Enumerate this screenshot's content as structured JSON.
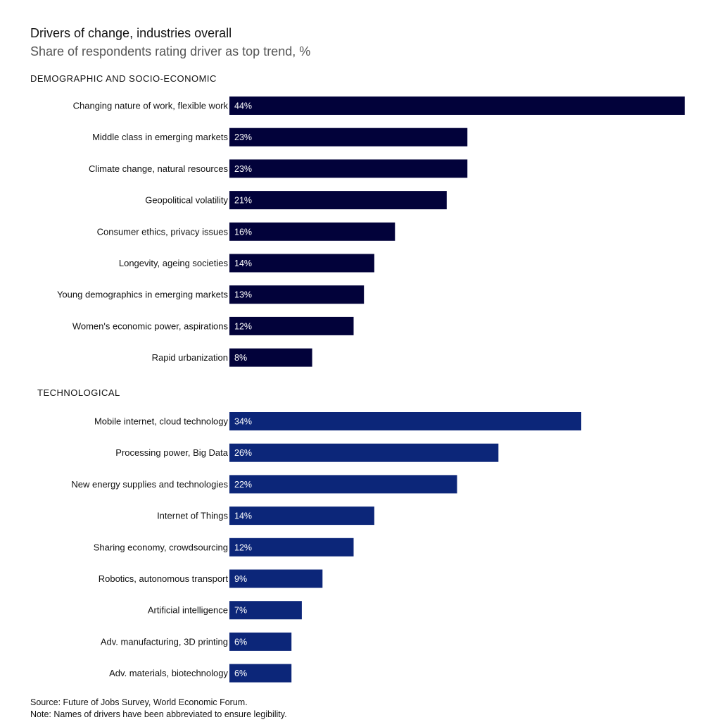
{
  "title": "Drivers of change, industries overall",
  "subtitle": "Share of respondents rating driver as top trend, %",
  "source": "Source: Future of Jobs Survey, World Economic Forum.",
  "note": "Note: Names of drivers have been abbreviated to ensure legibility.",
  "colors": {
    "demographic": "#02023a",
    "technological": "#0c2679",
    "label_text": "#ffffff"
  },
  "chart_data": {
    "type": "bar",
    "orientation": "horizontal",
    "title": "Drivers of change, industries overall",
    "subtitle": "Share of respondents rating driver as top trend, %",
    "unit": "%",
    "xlim": [
      0,
      44
    ],
    "grid": false,
    "groups": [
      {
        "name": "DEMOGRAPHIC AND SOCIO-ECONOMIC",
        "color": "#02023a",
        "categories": [
          "Changing nature of work, flexible work",
          "Middle class in emerging markets",
          "Climate change, natural resources",
          "Geopolitical volatility",
          "Consumer ethics, privacy issues",
          "Longevity, ageing societies",
          "Young demographics in emerging markets",
          "Women's economic power, aspirations",
          "Rapid urbanization"
        ],
        "values": [
          44,
          23,
          23,
          21,
          16,
          14,
          13,
          12,
          8
        ]
      },
      {
        "name": "TECHNOLOGICAL",
        "color": "#0c2679",
        "categories": [
          "Mobile internet, cloud technology",
          "Processing power, Big Data",
          "New energy supplies and technologies",
          "Internet of Things",
          "Sharing economy, crowdsourcing",
          "Robotics, autonomous transport",
          "Artificial intelligence",
          "Adv. manufacturing, 3D printing",
          "Adv. materials, biotechnology"
        ],
        "values": [
          34,
          26,
          22,
          14,
          12,
          9,
          7,
          6,
          6
        ]
      }
    ]
  }
}
